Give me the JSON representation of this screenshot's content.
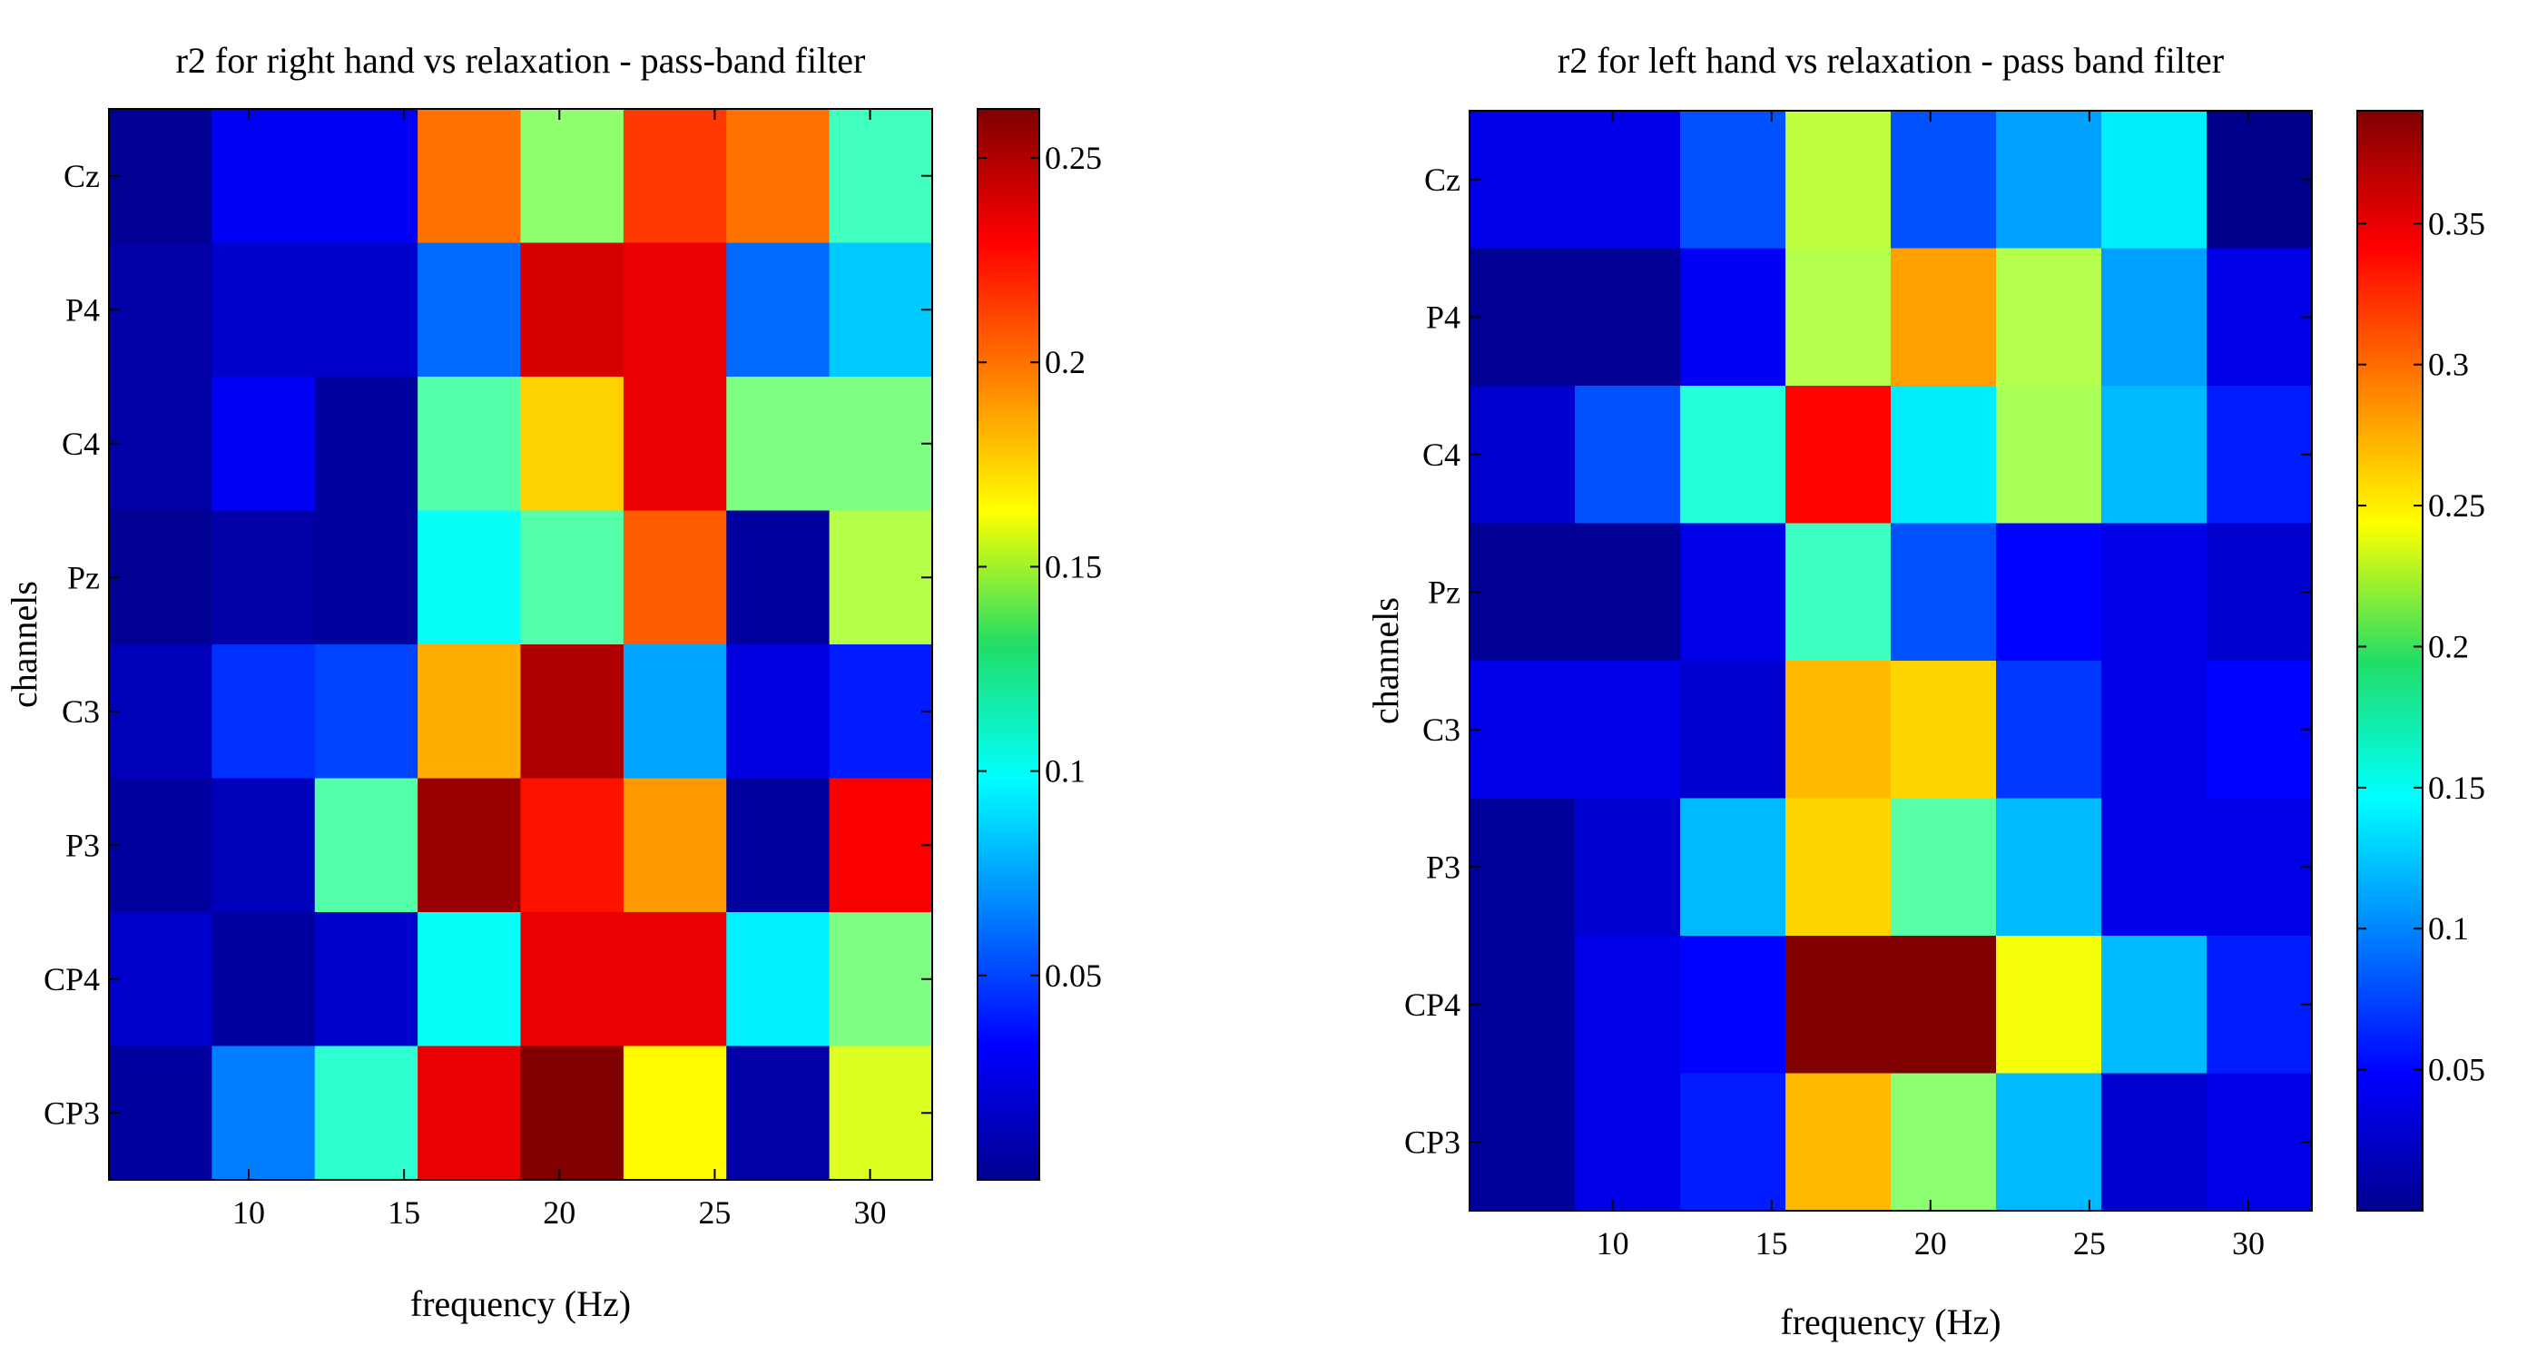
{
  "chart_data": [
    {
      "type": "heatmap",
      "title": "r2 for right hand vs relaxation - pass-band filter",
      "xlabel": "frequency (Hz)",
      "ylabel": "channels",
      "channels": [
        "Cz",
        "P4",
        "C4",
        "Pz",
        "C3",
        "P3",
        "CP4",
        "CP3"
      ],
      "x_ticks": [
        "10",
        "15",
        "20",
        "25",
        "30"
      ],
      "x_tick_values": [
        10,
        15,
        20,
        25,
        30
      ],
      "xlim": [
        5.5,
        32.0
      ],
      "freq_bins": [
        7,
        10,
        13,
        17,
        20,
        23,
        27,
        30
      ],
      "clim": [
        0,
        0.262
      ],
      "colorbar_ticks": [
        "0.05",
        "0.1",
        "0.15",
        "0.2",
        "0.25"
      ],
      "colorbar_tick_values": [
        0.05,
        0.1,
        0.15,
        0.2,
        0.25
      ],
      "values": [
        [
          0.005,
          0.03,
          0.03,
          0.2,
          0.135,
          0.215,
          0.2,
          0.115
        ],
        [
          0.01,
          0.02,
          0.02,
          0.06,
          0.24,
          0.235,
          0.06,
          0.085
        ],
        [
          0.01,
          0.03,
          0.008,
          0.12,
          0.175,
          0.235,
          0.13,
          0.13
        ],
        [
          0.005,
          0.01,
          0.008,
          0.1,
          0.12,
          0.205,
          0.008,
          0.145
        ],
        [
          0.015,
          0.045,
          0.05,
          0.185,
          0.25,
          0.075,
          0.025,
          0.04
        ],
        [
          0.008,
          0.015,
          0.12,
          0.255,
          0.225,
          0.19,
          0.008,
          0.23
        ],
        [
          0.02,
          0.008,
          0.02,
          0.1,
          0.235,
          0.235,
          0.095,
          0.13
        ],
        [
          0.008,
          0.065,
          0.11,
          0.235,
          0.262,
          0.165,
          0.01,
          0.155
        ]
      ]
    },
    {
      "type": "heatmap",
      "title": "r2 for left hand vs relaxation - pass band filter",
      "xlabel": "frequency (Hz)",
      "ylabel": "channels",
      "channels": [
        "Cz",
        "P4",
        "C4",
        "Pz",
        "C3",
        "P3",
        "CP4",
        "CP3"
      ],
      "x_ticks": [
        "10",
        "15",
        "20",
        "25",
        "30"
      ],
      "x_tick_values": [
        10,
        15,
        20,
        25,
        30
      ],
      "xlim": [
        5.5,
        32.0
      ],
      "freq_bins": [
        7,
        10,
        13,
        17,
        20,
        23,
        27,
        30
      ],
      "clim": [
        0,
        0.39
      ],
      "colorbar_ticks": [
        "0.05",
        "0.1",
        "0.15",
        "0.2",
        "0.25",
        "0.3",
        "0.35"
      ],
      "colorbar_tick_values": [
        0.05,
        0.1,
        0.15,
        0.2,
        0.25,
        0.3,
        0.35
      ],
      "values": [
        [
          0.04,
          0.04,
          0.08,
          0.22,
          0.08,
          0.11,
          0.14,
          0.005
        ],
        [
          0.008,
          0.008,
          0.045,
          0.215,
          0.28,
          0.215,
          0.11,
          0.04
        ],
        [
          0.03,
          0.08,
          0.16,
          0.34,
          0.14,
          0.21,
          0.12,
          0.06
        ],
        [
          0.008,
          0.008,
          0.04,
          0.17,
          0.08,
          0.05,
          0.04,
          0.03
        ],
        [
          0.04,
          0.04,
          0.03,
          0.27,
          0.26,
          0.07,
          0.04,
          0.05
        ],
        [
          0.01,
          0.03,
          0.12,
          0.26,
          0.18,
          0.12,
          0.04,
          0.04
        ],
        [
          0.01,
          0.04,
          0.05,
          0.39,
          0.39,
          0.24,
          0.12,
          0.06
        ],
        [
          0.01,
          0.04,
          0.06,
          0.27,
          0.2,
          0.12,
          0.03,
          0.04
        ]
      ]
    }
  ]
}
